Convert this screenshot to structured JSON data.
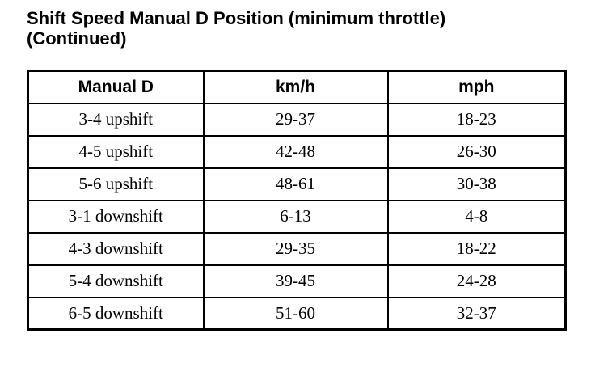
{
  "page": {
    "title": "Shift Speed Manual D Position (minimum throttle) (Continued)"
  },
  "table": {
    "columns": [
      "Manual D",
      "km/h",
      "mph"
    ],
    "rows": [
      [
        "3-4 upshift",
        "29-37",
        "18-23"
      ],
      [
        "4-5 upshift",
        "42-48",
        "26-30"
      ],
      [
        "5-6 upshift",
        "48-61",
        "30-38"
      ],
      [
        "3-1 downshift",
        "6-13",
        "4-8"
      ],
      [
        "4-3 downshift",
        "29-35",
        "18-22"
      ],
      [
        "5-4 downshift",
        "39-45",
        "24-28"
      ],
      [
        "6-5 downshift",
        "51-60",
        "32-37"
      ]
    ]
  },
  "colors": {
    "text": "#000000",
    "border": "#000000",
    "background": "#ffffff"
  }
}
